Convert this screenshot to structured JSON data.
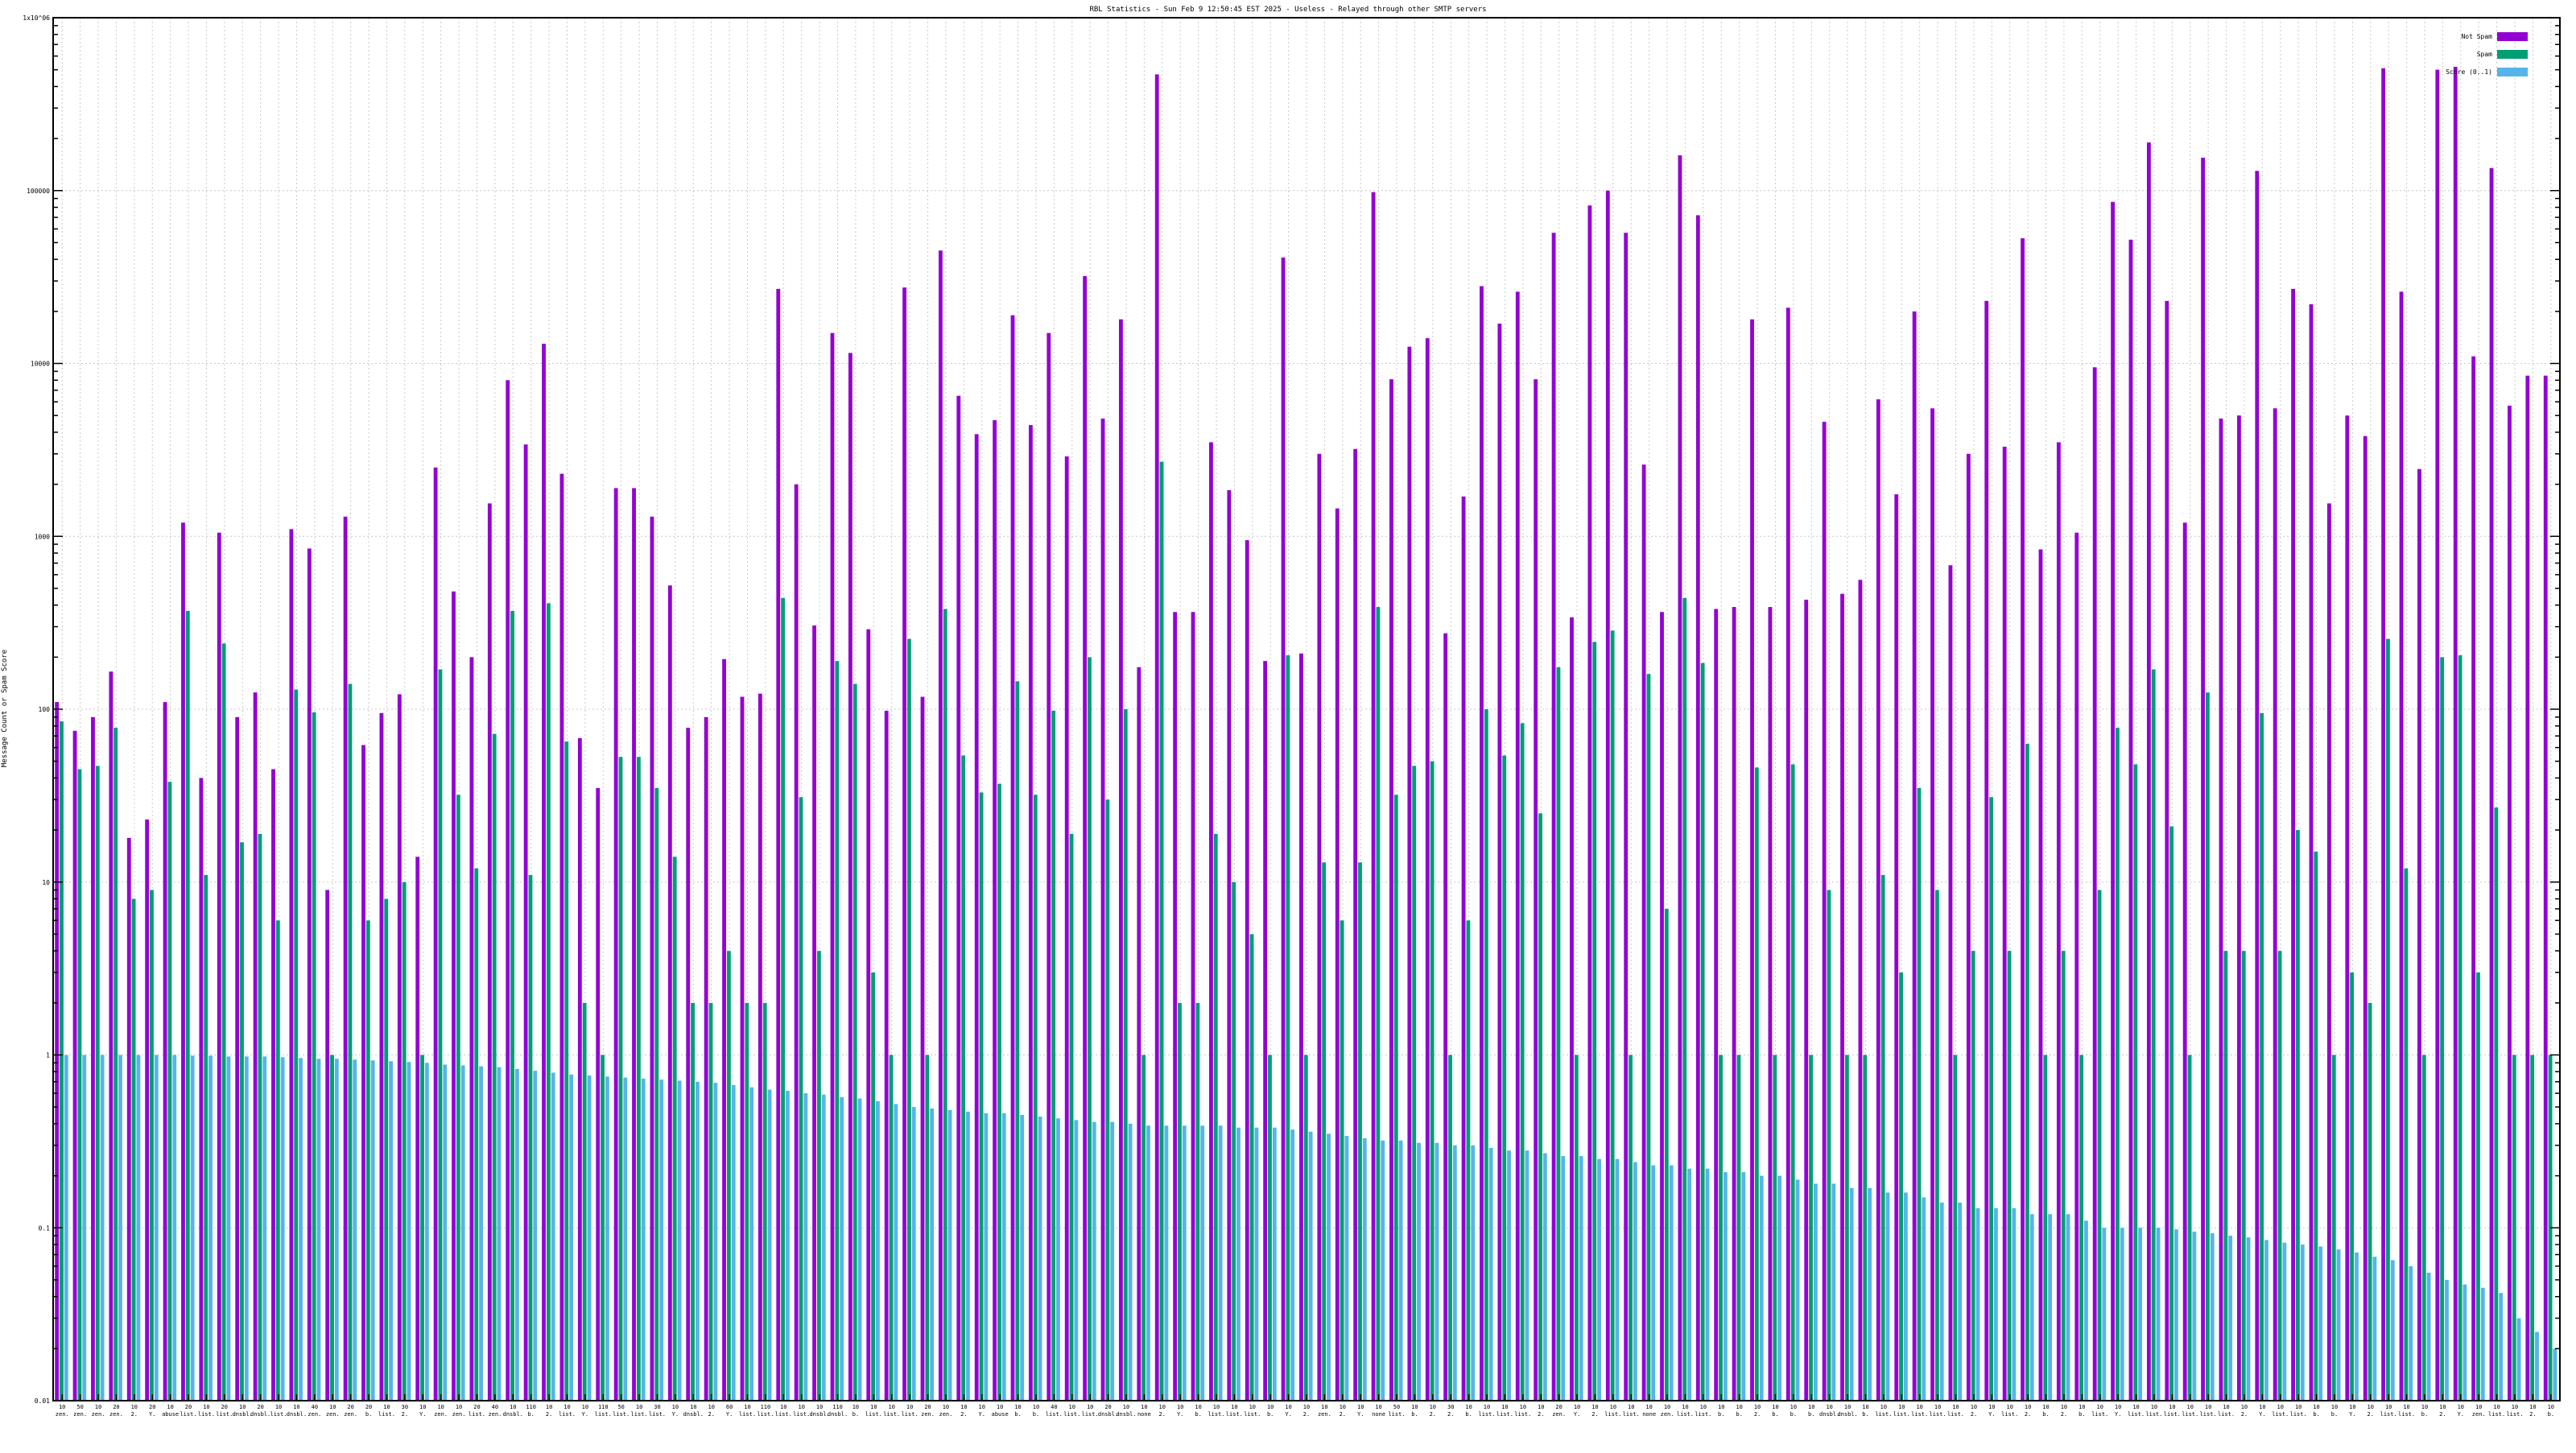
{
  "chart_data": {
    "type": "bar",
    "title": "RBL Statistics - Sun Feb  9 12:50:45 EST 2025 - Useless - Relayed through other SMTP servers",
    "ylabel": "Message Count or Spam Score",
    "y_scale": "log",
    "ylim": [
      0.01,
      1000000
    ],
    "y_ticks": [
      0.01,
      0.1,
      1,
      10,
      100,
      1000,
      10000,
      100000,
      1000000
    ],
    "y_tick_labels": [
      "0.01",
      "0.1",
      "1",
      "10",
      "100",
      "1000",
      "10000",
      "100000",
      "1x10^06"
    ],
    "grid": true,
    "legend_position": "top-right",
    "series": [
      {
        "name": "Not Spam",
        "color": "#9400d3",
        "values": [
          110,
          75,
          90,
          165,
          18,
          23,
          110,
          1200,
          40,
          1050,
          90,
          125,
          45,
          1100,
          850,
          9,
          1300,
          62,
          95,
          122,
          14,
          2500,
          480,
          200,
          1550,
          8000,
          3400,
          13000,
          2300,
          68,
          35,
          1900,
          1900,
          1300,
          520,
          78,
          90,
          195,
          118,
          123,
          27000,
          2000,
          305,
          15000,
          11500,
          290,
          98,
          27500,
          118,
          45000,
          6500,
          3900,
          4700,
          19000,
          4400,
          15000,
          2900,
          32000,
          4800,
          18000,
          175,
          470000,
          365,
          365,
          3500,
          1850,
          950,
          190,
          41000,
          210,
          3000,
          1450,
          3200,
          98000,
          8100,
          12500,
          14000,
          275,
          1700,
          28000,
          17000,
          26000,
          8100,
          57000,
          340,
          82000,
          100000,
          57000,
          2600,
          365,
          160000,
          72000,
          380,
          390,
          18000,
          390,
          21000,
          430,
          4600,
          465,
          560,
          6200,
          1750,
          20000,
          5500,
          680,
          3000,
          23000,
          3300,
          53000,
          840,
          3500,
          1050,
          9500,
          86000,
          52000,
          190000,
          23000,
          1200,
          155000,
          4800,
          5000,
          130000,
          5500,
          27000,
          22000,
          1550,
          5000,
          3800,
          510000,
          26000,
          2450,
          500000,
          520000,
          11000,
          135000,
          5700,
          8500,
          8500
        ],
        "note": "values in message counts, read off the log axis"
      },
      {
        "name": "Spam",
        "color": "#009e73",
        "values": [
          85,
          45,
          47,
          78,
          8,
          9,
          38,
          370,
          11,
          240,
          17,
          19,
          6,
          130,
          96,
          1,
          140,
          6,
          8,
          10,
          1,
          170,
          32,
          12,
          72,
          370,
          11,
          410,
          65,
          2,
          1,
          53,
          53,
          35,
          14,
          2,
          2,
          4,
          2,
          2,
          440,
          31,
          4,
          190,
          140,
          3,
          1,
          255,
          1,
          380,
          54,
          33,
          37,
          145,
          32,
          98,
          19,
          200,
          30,
          100,
          1,
          2700,
          2,
          2,
          19,
          10,
          5,
          1,
          205,
          1,
          13,
          6,
          13,
          390,
          32,
          47,
          50,
          1,
          6,
          100,
          54,
          83,
          25,
          175,
          1,
          245,
          285,
          1,
          160,
          7,
          440,
          185,
          1,
          1,
          46,
          1,
          48,
          1,
          9,
          1,
          1,
          11,
          3,
          35,
          9,
          1,
          4,
          31,
          4,
          63,
          1,
          4,
          1,
          9,
          78,
          48,
          170,
          21,
          1,
          125,
          4,
          4,
          95,
          4,
          20,
          15,
          1,
          3,
          2,
          255,
          12,
          1,
          200,
          205,
          3,
          27,
          1,
          1,
          1
        ]
      },
      {
        "name": "Score (0..1)",
        "color": "#56b4e9",
        "values": [
          1,
          1,
          1,
          1,
          1,
          1,
          1,
          0.99,
          0.99,
          0.98,
          0.98,
          0.98,
          0.97,
          0.96,
          0.95,
          0.95,
          0.94,
          0.93,
          0.92,
          0.91,
          0.9,
          0.88,
          0.87,
          0.86,
          0.85,
          0.83,
          0.81,
          0.79,
          0.77,
          0.76,
          0.75,
          0.74,
          0.73,
          0.72,
          0.71,
          0.7,
          0.69,
          0.67,
          0.65,
          0.63,
          0.62,
          0.6,
          0.59,
          0.57,
          0.56,
          0.54,
          0.52,
          0.5,
          0.49,
          0.48,
          0.47,
          0.46,
          0.46,
          0.45,
          0.44,
          0.43,
          0.42,
          0.41,
          0.41,
          0.4,
          0.39,
          0.39,
          0.39,
          0.39,
          0.39,
          0.38,
          0.38,
          0.38,
          0.37,
          0.36,
          0.35,
          0.34,
          0.33,
          0.32,
          0.32,
          0.31,
          0.31,
          0.3,
          0.3,
          0.29,
          0.28,
          0.28,
          0.27,
          0.26,
          0.26,
          0.25,
          0.25,
          0.24,
          0.23,
          0.23,
          0.22,
          0.22,
          0.21,
          0.21,
          0.2,
          0.2,
          0.19,
          0.18,
          0.18,
          0.17,
          0.17,
          0.16,
          0.16,
          0.15,
          0.14,
          0.14,
          0.13,
          0.13,
          0.13,
          0.12,
          0.12,
          0.12,
          0.11,
          0.1,
          0.1,
          0.1,
          0.1,
          0.098,
          0.095,
          0.093,
          0.09,
          0.088,
          0.085,
          0.082,
          0.08,
          0.078,
          0.075,
          0.072,
          0.068,
          0.065,
          0.06,
          0.055,
          0.05,
          0.047,
          0.045,
          0.042,
          0.03,
          0.025,
          0.02,
          0.015
        ]
      }
    ],
    "category_labels": {
      "line1": [
        "10",
        "50",
        "10",
        "20",
        "10",
        "20",
        "10",
        "20",
        "10",
        "20",
        "10",
        "20",
        "10",
        "10",
        "40",
        "10",
        "20",
        "20",
        "10",
        "30",
        "10",
        "10",
        "10",
        "20",
        "40",
        "10",
        "110",
        "10",
        "10",
        "10",
        "110",
        "50",
        "10",
        "30",
        "10",
        "10",
        "10",
        "60",
        "10",
        "110",
        "10",
        "10",
        "10",
        "110",
        "10",
        "10",
        "10",
        "10",
        "20",
        "10",
        "10",
        "10",
        "10",
        "10",
        "10",
        "40",
        "10",
        "10",
        "20",
        "10",
        "10",
        "10",
        "10",
        "10",
        "10",
        "10",
        "10",
        "10",
        "10",
        "10",
        "10",
        "10",
        "10",
        "10",
        "50",
        "10",
        "10",
        "30",
        "10",
        "10",
        "10",
        "10",
        "10",
        "20",
        "10",
        "10",
        "10",
        "10",
        "10",
        "10",
        "10",
        "10",
        "10",
        "10",
        "10",
        "10",
        "10",
        "10",
        "10",
        "10",
        "10",
        "10",
        "10",
        "10",
        "10",
        "10",
        "10",
        "10",
        "10",
        "10",
        "10",
        "10",
        "10",
        "10",
        "10",
        "10",
        "10",
        "10",
        "10",
        "10",
        "10",
        "10",
        "10",
        "10",
        "10",
        "10",
        "10",
        "10",
        "10",
        "10",
        "10",
        "10",
        "10",
        "10",
        "10",
        "10",
        "10",
        "10",
        "10",
        "10",
        "10",
        "10"
      ],
      "line2": [
        "zen.",
        "zen.",
        "zen.",
        "zen.",
        "2.",
        "Y.",
        "abuse",
        "list.",
        "list.",
        "list.",
        "dnsbl.",
        "dnsbl.",
        "list.",
        "dnsbl.",
        "zen.",
        "zen.",
        "zen.",
        "b.",
        "list.",
        "2.",
        "Y.",
        "zen.",
        "zen.",
        "list.",
        "zen.",
        "dnsbl.",
        "b.",
        "2.",
        "list.",
        "Y.",
        "list.",
        "list.",
        "list.",
        "list.",
        "Y.",
        "dnsbl.",
        "2.",
        "Y.",
        "list.",
        "list.",
        "list.",
        "list.",
        "dnsbl.",
        "dnsbl.",
        "b.",
        "list.",
        "list.",
        "list.",
        "zen.",
        "zen.",
        "2.",
        "Y.",
        "abuse",
        "b.",
        "b.",
        "list.",
        "list.",
        "list.",
        "dnsbl.",
        "dnsbl.",
        "none",
        "2.",
        "Y.",
        "b.",
        "list.",
        "list.",
        "list.",
        "b.",
        "Y.",
        "2.",
        "zen.",
        "2.",
        "Y.",
        "none",
        "list.",
        "b.",
        "2.",
        "2.",
        "b.",
        "list.",
        "list.",
        "list.",
        "2.",
        "zen.",
        "Y.",
        "2.",
        "list.",
        "list.",
        "none",
        "zen.",
        "list.",
        "list.",
        "b.",
        "b.",
        "2.",
        "b.",
        "b.",
        "b.",
        "dnsbl.",
        "dnsbl.",
        "b.",
        "list.",
        "list.",
        "list.",
        "list.",
        "list.",
        "2.",
        "Y.",
        "list.",
        "2.",
        "b.",
        "2.",
        "b.",
        "list.",
        "Y.",
        "list.",
        "list.",
        "list.",
        "list.",
        "list.",
        "list.",
        "2.",
        "Y.",
        "list.",
        "list.",
        "b.",
        "b.",
        "Y.",
        "2.",
        "list.",
        "list.",
        "b.",
        "2.",
        "Y.",
        "zen.",
        "list.",
        "list.",
        "2.",
        "b.",
        "list."
      ]
    }
  }
}
